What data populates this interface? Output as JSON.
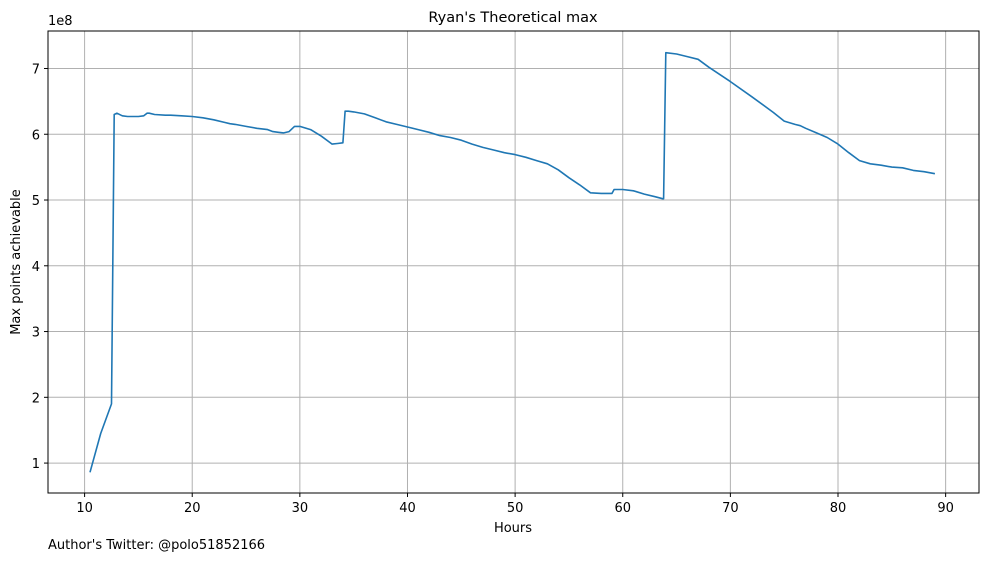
{
  "chart_data": {
    "type": "line",
    "title": "Ryan's Theoretical max",
    "xlabel": "Hours",
    "ylabel": "Max points achievable",
    "offset_text": "1e8",
    "xlim": [
      6.6,
      93.1
    ],
    "ylim": [
      0.545,
      7.57
    ],
    "xticks": [
      10,
      20,
      30,
      40,
      50,
      60,
      70,
      80,
      90
    ],
    "xtick_labels": [
      "10",
      "20",
      "30",
      "40",
      "50",
      "60",
      "70",
      "80",
      "90"
    ],
    "yticks": [
      1,
      2,
      3,
      4,
      5,
      6,
      7
    ],
    "ytick_labels": [
      "1",
      "2",
      "3",
      "4",
      "5",
      "6",
      "7"
    ],
    "grid": true,
    "series": [
      {
        "name": "Max points achievable",
        "color": "#1f77b4",
        "x": [
          10.5,
          11.5,
          12.5,
          12.75,
          13.0,
          13.5,
          14.0,
          15.0,
          15.5,
          15.8,
          16.0,
          16.5,
          17.5,
          18.0,
          19.0,
          20.0,
          21.0,
          22.0,
          23.0,
          23.5,
          24.0,
          25.0,
          26.0,
          27.0,
          27.5,
          28.0,
          28.5,
          29.0,
          29.5,
          30.0,
          31.0,
          32.0,
          33.0,
          33.5,
          34.0,
          34.2,
          34.5,
          35.0,
          36.0,
          37.0,
          38.0,
          39.0,
          40.0,
          41.0,
          42.0,
          43.0,
          44.0,
          45.0,
          46.0,
          47.0,
          48.0,
          49.0,
          50.0,
          51.0,
          52.0,
          53.0,
          54.0,
          55.0,
          56.0,
          57.0,
          58.0,
          59.0,
          59.2,
          60.0,
          61.0,
          62.0,
          63.0,
          63.7,
          63.8,
          64.0,
          65.0,
          66.0,
          67.0,
          68.0,
          70.0,
          72.0,
          74.0,
          75.0,
          76.0,
          76.5,
          77.0,
          78.0,
          79.0,
          80.0,
          81.0,
          82.0,
          83.0,
          84.0,
          85.0,
          86.0,
          87.0,
          88.0,
          89.0
        ],
        "y": [
          0.86,
          1.45,
          1.9,
          6.3,
          6.32,
          6.28,
          6.27,
          6.27,
          6.28,
          6.32,
          6.32,
          6.3,
          6.29,
          6.29,
          6.28,
          6.27,
          6.25,
          6.22,
          6.18,
          6.16,
          6.15,
          6.12,
          6.09,
          6.07,
          6.04,
          6.03,
          6.02,
          6.04,
          6.12,
          6.12,
          6.07,
          5.97,
          5.85,
          5.86,
          5.87,
          6.35,
          6.35,
          6.34,
          6.31,
          6.25,
          6.19,
          6.15,
          6.11,
          6.07,
          6.03,
          5.98,
          5.95,
          5.91,
          5.85,
          5.8,
          5.76,
          5.72,
          5.69,
          5.65,
          5.6,
          5.55,
          5.46,
          5.34,
          5.23,
          5.11,
          5.1,
          5.1,
          5.16,
          5.16,
          5.14,
          5.09,
          5.05,
          5.02,
          5.02,
          7.24,
          7.22,
          7.18,
          7.14,
          7.02,
          6.8,
          6.57,
          6.33,
          6.2,
          6.15,
          6.13,
          6.09,
          6.02,
          5.95,
          5.85,
          5.72,
          5.6,
          5.55,
          5.53,
          5.5,
          5.49,
          5.45,
          5.43,
          5.4
        ]
      }
    ]
  },
  "footnote": "Author's Twitter: @polo51852166"
}
